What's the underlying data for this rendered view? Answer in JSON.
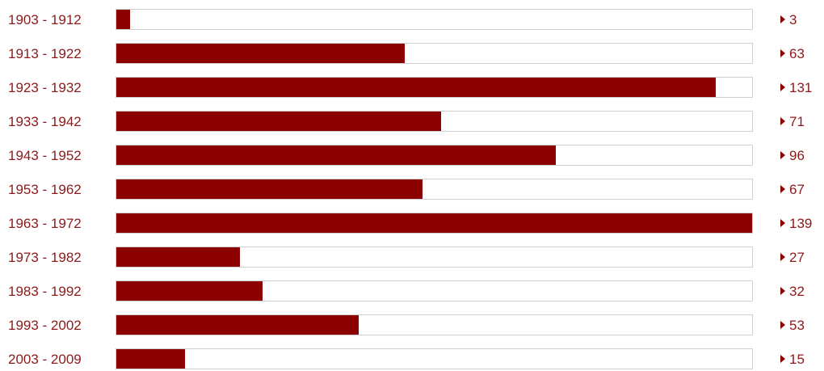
{
  "chart_data": {
    "type": "bar",
    "orientation": "horizontal",
    "categories": [
      "1903 - 1912",
      "1913 - 1922",
      "1923 - 1932",
      "1933 - 1942",
      "1943 - 1952",
      "1953 - 1962",
      "1963 - 1972",
      "1973 - 1982",
      "1983 - 1992",
      "1993 - 2002",
      "2003 - 2009"
    ],
    "values": [
      3,
      63,
      131,
      71,
      96,
      67,
      139,
      27,
      32,
      53,
      15
    ],
    "title": "",
    "xlabel": "",
    "ylabel": "",
    "xlim": [
      0,
      139
    ],
    "grid": false,
    "legend": "none",
    "colors": {
      "bar": "#8b0000",
      "track_border": "#cfcfcf",
      "label": "#8b1a1a"
    }
  },
  "icons": {
    "value_marker": "triangle-right-icon"
  }
}
